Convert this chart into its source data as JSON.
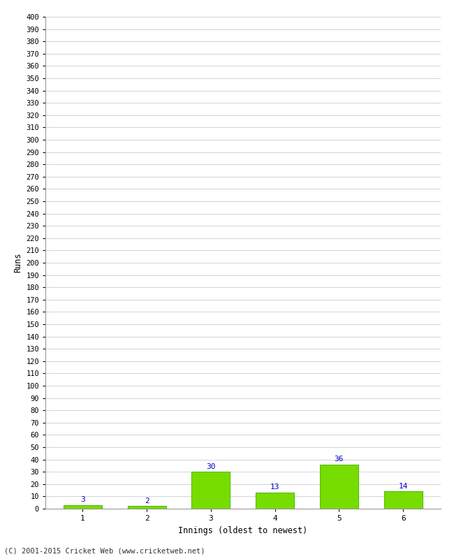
{
  "categories": [
    1,
    2,
    3,
    4,
    5,
    6
  ],
  "values": [
    3,
    2,
    30,
    13,
    36,
    14
  ],
  "bar_color": "#77dd00",
  "bar_edge_color": "#55bb00",
  "ylabel": "Runs",
  "xlabel": "Innings (oldest to newest)",
  "ylim": [
    0,
    400
  ],
  "ytick_step": 10,
  "background_color": "#ffffff",
  "grid_color": "#cccccc",
  "label_color": "#0000cc",
  "copyright": "(C) 2001-2015 Cricket Web (www.cricketweb.net)"
}
